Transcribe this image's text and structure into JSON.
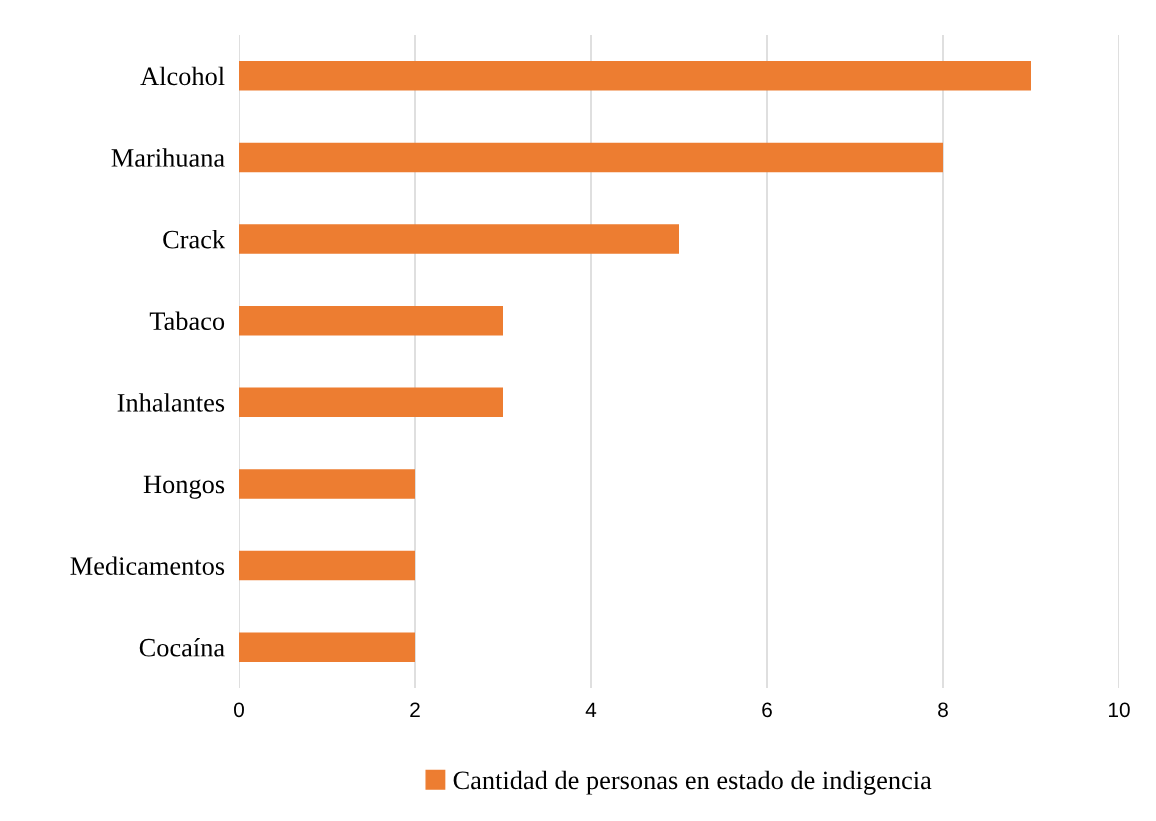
{
  "chart_data": {
    "type": "bar",
    "orientation": "horizontal",
    "categories": [
      "Alcohol",
      "Marihuana",
      "Crack",
      "Tabaco",
      "Inhalantes",
      "Hongos",
      "Medicamentos",
      "Cocaína"
    ],
    "series": [
      {
        "name": "Cantidad de personas en estado de indigencia",
        "color": "#ed7d31",
        "values": [
          9,
          8,
          5,
          3,
          3,
          2,
          2,
          2
        ]
      }
    ],
    "xlim": [
      0,
      10
    ],
    "xticks": [
      0,
      2,
      4,
      6,
      8,
      10
    ],
    "grid": "x",
    "legend": "bottom"
  }
}
